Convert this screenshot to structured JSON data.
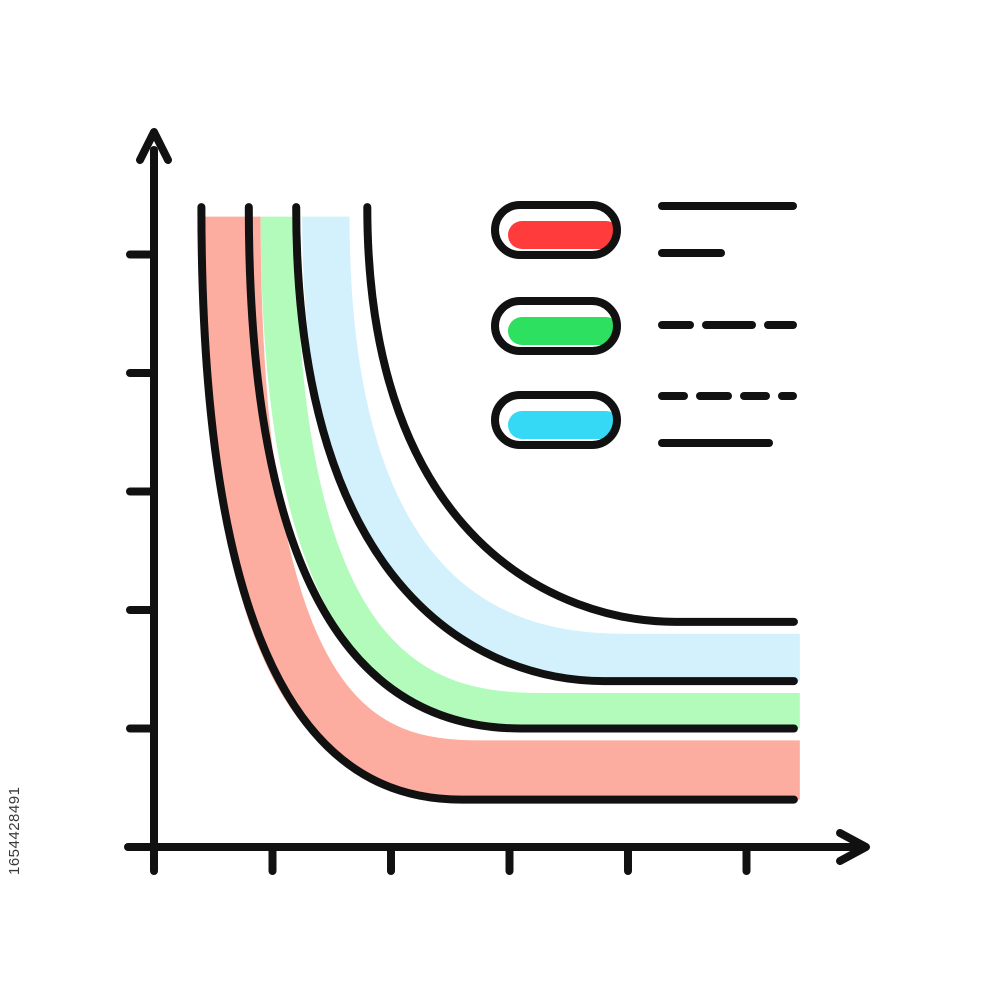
{
  "stock_id": "1654428491",
  "colors": {
    "stroke": "#111111",
    "red": "#ff3b3b",
    "green": "#2ee05f",
    "blue": "#36d9f5",
    "band_red": "#fcada0",
    "band_green": "#b2fbbb",
    "band_blue": "#d3f1fc"
  },
  "chart_data": {
    "type": "line",
    "title": "",
    "xlabel": "",
    "ylabel": "",
    "xlim": [
      0,
      6
    ],
    "ylim": [
      0,
      6
    ],
    "grid": false,
    "x_ticks": [
      1,
      2,
      3,
      4,
      5
    ],
    "y_ticks": [
      1,
      2,
      3,
      4,
      5
    ],
    "legend": {
      "position": "top-right",
      "entries": [
        {
          "swatch": "red",
          "text_lines": 2,
          "style": "solid"
        },
        {
          "swatch": "green",
          "text_lines": 1,
          "style": "dashed"
        },
        {
          "swatch": "blue",
          "text_lines": 2,
          "style": "dash-solid"
        }
      ]
    },
    "series": [
      {
        "color": "red",
        "x_start": 0.4,
        "x_end": 5.4,
        "y_start": 5.4,
        "y_end": 0.4,
        "knee": [
          1.6,
          1.1
        ],
        "band_lower": 0.4,
        "band_upper": 0.9
      },
      {
        "color": "green",
        "x_start": 0.8,
        "x_end": 5.4,
        "y_start": 5.4,
        "y_end": 1.0,
        "knee": [
          2.1,
          1.6
        ],
        "band_lower": 1.0,
        "band_upper": 1.3
      },
      {
        "color": "blue",
        "x_start": 1.2,
        "x_end": 5.4,
        "y_start": 5.4,
        "y_end": 1.4,
        "knee": [
          2.8,
          2.1
        ],
        "band_lower": 1.4,
        "band_upper": 1.8
      },
      {
        "color": "black",
        "x_start": 1.8,
        "x_end": 5.4,
        "y_start": 5.4,
        "y_end": 1.9,
        "knee": [
          3.4,
          2.6
        ]
      }
    ]
  }
}
